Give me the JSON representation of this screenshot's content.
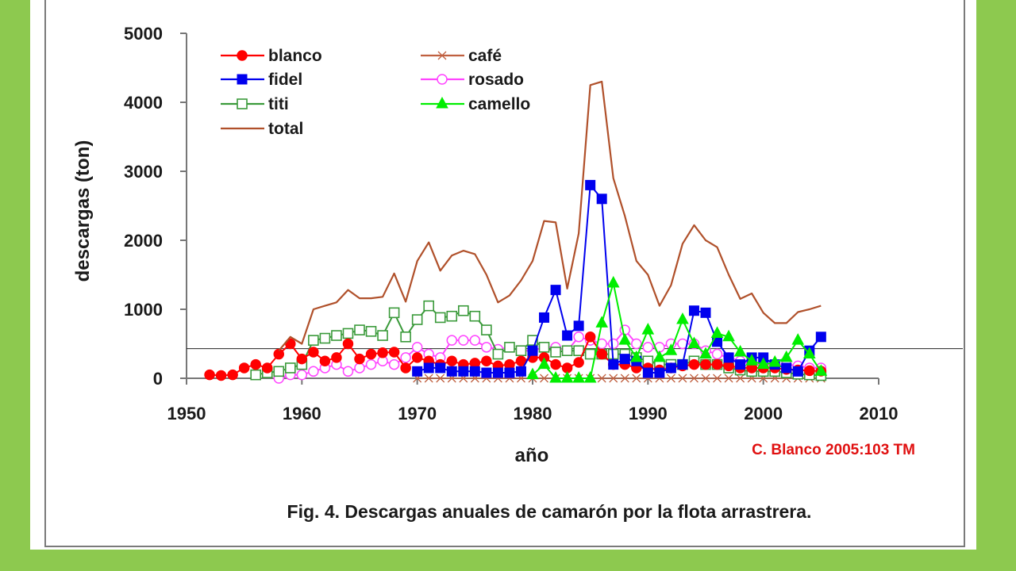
{
  "chart_data": {
    "type": "line",
    "title": "",
    "xlabel": "año",
    "ylabel": "descargas (ton)",
    "xlim": [
      1950,
      2010
    ],
    "ylim": [
      0,
      5000
    ],
    "xticks": [
      "1950",
      "1960",
      "1970",
      "1980",
      "1990",
      "2000",
      "2010"
    ],
    "yticks": [
      "0",
      "1000",
      "2000",
      "3000",
      "4000",
      "5000"
    ],
    "legend_position": "top-left",
    "grid": false,
    "series": [
      {
        "name": "blanco",
        "color": "#ff0000",
        "marker": "circle-filled",
        "x": [
          1952,
          1953,
          1954,
          1955,
          1956,
          1957,
          1958,
          1959,
          1960,
          1961,
          1962,
          1963,
          1964,
          1965,
          1966,
          1967,
          1968,
          1969,
          1970,
          1971,
          1972,
          1973,
          1974,
          1975,
          1976,
          1977,
          1978,
          1979,
          1980,
          1981,
          1982,
          1983,
          1984,
          1985,
          1986,
          1987,
          1988,
          1989,
          1990,
          1991,
          1992,
          1993,
          1994,
          1995,
          1996,
          1997,
          1998,
          1999,
          2000,
          2001,
          2002,
          2003,
          2004,
          2005
        ],
        "y": [
          50,
          40,
          50,
          150,
          200,
          150,
          350,
          500,
          280,
          380,
          250,
          300,
          500,
          280,
          350,
          370,
          380,
          150,
          300,
          250,
          200,
          250,
          200,
          220,
          250,
          180,
          200,
          250,
          300,
          300,
          200,
          150,
          230,
          600,
          350,
          200,
          200,
          150,
          150,
          120,
          150,
          180,
          200,
          200,
          200,
          180,
          150,
          150,
          150,
          150,
          130,
          120,
          110,
          103
        ]
      },
      {
        "name": "café",
        "color": "#c06040",
        "marker": "x",
        "x": [
          1970,
          1971,
          1972,
          1973,
          1974,
          1975,
          1976,
          1977,
          1978,
          1979,
          1980,
          1981,
          1982,
          1983,
          1984,
          1985,
          1986,
          1987,
          1988,
          1989,
          1990,
          1991,
          1992,
          1993,
          1994,
          1995,
          1996,
          1997,
          1998,
          1999,
          2000,
          2001,
          2002,
          2003,
          2004,
          2005
        ],
        "y": [
          0,
          0,
          0,
          0,
          0,
          0,
          0,
          0,
          0,
          0,
          0,
          0,
          0,
          0,
          0,
          0,
          0,
          0,
          0,
          0,
          0,
          0,
          0,
          0,
          0,
          0,
          0,
          0,
          0,
          0,
          0,
          0,
          0,
          0,
          0,
          0
        ]
      },
      {
        "name": "fidel",
        "color": "#0000ee",
        "marker": "square-filled",
        "x": [
          1970,
          1971,
          1972,
          1973,
          1974,
          1975,
          1976,
          1977,
          1978,
          1979,
          1980,
          1981,
          1982,
          1983,
          1984,
          1985,
          1986,
          1987,
          1988,
          1989,
          1990,
          1991,
          1992,
          1993,
          1994,
          1995,
          1996,
          1997,
          1998,
          1999,
          2000,
          2001,
          2002,
          2003,
          2004,
          2005
        ],
        "y": [
          100,
          150,
          150,
          100,
          100,
          100,
          80,
          80,
          80,
          100,
          400,
          880,
          1280,
          620,
          760,
          2800,
          2600,
          200,
          280,
          250,
          80,
          80,
          150,
          200,
          980,
          950,
          530,
          300,
          200,
          300,
          300,
          200,
          150,
          100,
          400,
          600
        ]
      },
      {
        "name": "rosado",
        "color": "#ff44ff",
        "marker": "circle-open",
        "x": [
          1958,
          1959,
          1960,
          1961,
          1962,
          1963,
          1964,
          1965,
          1966,
          1967,
          1968,
          1969,
          1970,
          1971,
          1972,
          1973,
          1974,
          1975,
          1976,
          1977,
          1978,
          1979,
          1980,
          1981,
          1982,
          1983,
          1984,
          1985,
          1986,
          1987,
          1988,
          1989,
          1990,
          1991,
          1992,
          1993,
          1994,
          1995,
          1996,
          1997,
          1998,
          1999,
          2000,
          2001,
          2002,
          2003,
          2004,
          2005
        ],
        "y": [
          0,
          50,
          50,
          100,
          150,
          200,
          100,
          150,
          200,
          250,
          200,
          300,
          450,
          350,
          300,
          550,
          550,
          550,
          450,
          420,
          450,
          400,
          400,
          450,
          450,
          400,
          600,
          550,
          500,
          500,
          700,
          500,
          450,
          450,
          500,
          500,
          500,
          400,
          350,
          300,
          250,
          200,
          200,
          200,
          200,
          180,
          150,
          150
        ]
      },
      {
        "name": "titi",
        "color": "#3a9a3a",
        "marker": "square-open",
        "x": [
          1956,
          1957,
          1958,
          1959,
          1960,
          1961,
          1962,
          1963,
          1964,
          1965,
          1966,
          1967,
          1968,
          1969,
          1970,
          1971,
          1972,
          1973,
          1974,
          1975,
          1976,
          1977,
          1978,
          1979,
          1980,
          1981,
          1982,
          1983,
          1984,
          1985,
          1986,
          1987,
          1988,
          1989,
          1990,
          1991,
          1992,
          1993,
          1994,
          1995,
          1996,
          1997,
          1998,
          1999,
          2000,
          2001,
          2002,
          2003,
          2004,
          2005
        ],
        "y": [
          50,
          80,
          100,
          150,
          200,
          550,
          580,
          620,
          650,
          700,
          680,
          620,
          950,
          600,
          850,
          1050,
          880,
          900,
          980,
          900,
          700,
          350,
          450,
          400,
          550,
          450,
          380,
          400,
          400,
          350,
          350,
          350,
          350,
          300,
          250,
          200,
          200,
          200,
          250,
          200,
          200,
          150,
          120,
          100,
          100,
          100,
          80,
          60,
          50,
          40
        ]
      },
      {
        "name": "camello",
        "color": "#00ee00",
        "marker": "triangle-filled",
        "x": [
          1980,
          1981,
          1982,
          1983,
          1984,
          1985,
          1986,
          1987,
          1988,
          1989,
          1990,
          1991,
          1992,
          1993,
          1994,
          1995,
          1996,
          1997,
          1998,
          1999,
          2000,
          2001,
          2002,
          2003,
          2004,
          2005
        ],
        "y": [
          50,
          200,
          0,
          0,
          0,
          0,
          800,
          1380,
          550,
          300,
          700,
          300,
          400,
          850,
          500,
          350,
          650,
          600,
          380,
          250,
          200,
          230,
          300,
          550,
          350,
          100
        ]
      },
      {
        "name": "total",
        "color": "#b0502a",
        "marker": "none",
        "x": [
          1958,
          1959,
          1960,
          1961,
          1962,
          1963,
          1964,
          1965,
          1966,
          1967,
          1968,
          1969,
          1970,
          1971,
          1972,
          1973,
          1974,
          1975,
          1976,
          1977,
          1978,
          1979,
          1980,
          1981,
          1982,
          1983,
          1984,
          1985,
          1986,
          1987,
          1988,
          1989,
          1990,
          1991,
          1992,
          1993,
          1994,
          1995,
          1996,
          1997,
          1998,
          1999,
          2000,
          2001,
          2002,
          2003,
          2004,
          2005
        ],
        "y": [
          400,
          600,
          500,
          1000,
          1050,
          1100,
          1280,
          1160,
          1160,
          1180,
          1520,
          1110,
          1700,
          1970,
          1560,
          1780,
          1850,
          1800,
          1500,
          1100,
          1200,
          1420,
          1700,
          2280,
          2260,
          1300,
          2100,
          4250,
          4300,
          2900,
          2350,
          1700,
          1500,
          1050,
          1350,
          1950,
          2220,
          2000,
          1900,
          1500,
          1150,
          1230,
          950,
          800,
          800,
          960,
          1000,
          1050
        ]
      }
    ],
    "reference_line": {
      "y": 430
    },
    "annotation": "C. Blanco 2005:103 TM",
    "caption": "Fig. 4. Descargas anuales de camarón por la flota arrastrera."
  }
}
